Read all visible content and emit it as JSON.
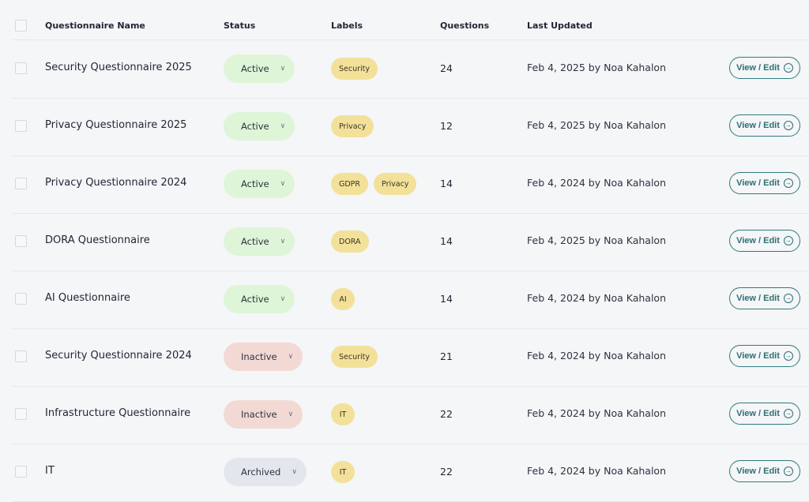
{
  "header": {
    "name": "Questionnaire Name",
    "status": "Status",
    "labels": "Labels",
    "questions": "Questions",
    "updated": "Last Updated"
  },
  "action_label": "View / Edit",
  "rows": [
    {
      "name": "Security Questionnaire 2025",
      "status": "Active",
      "labels": [
        "Security"
      ],
      "questions": "24",
      "updated": "Feb 4, 2025 by Noa Kahalon"
    },
    {
      "name": "Privacy Questionnaire 2025",
      "status": "Active",
      "labels": [
        "Privacy"
      ],
      "questions": "12",
      "updated": "Feb 4, 2025 by Noa Kahalon"
    },
    {
      "name": "Privacy Questionnaire 2024",
      "status": "Active",
      "labels": [
        "GDPR",
        "Privacy"
      ],
      "questions": "14",
      "updated": "Feb 4, 2024 by Noa Kahalon"
    },
    {
      "name": "DORA Questionnaire",
      "status": "Active",
      "labels": [
        "DORA"
      ],
      "questions": "14",
      "updated": "Feb 4, 2025 by Noa Kahalon"
    },
    {
      "name": "AI Questionnaire",
      "status": "Active",
      "labels": [
        "AI"
      ],
      "questions": "14",
      "updated": "Feb 4, 2024 by Noa Kahalon"
    },
    {
      "name": "Security Questionnaire 2024",
      "status": "Inactive",
      "labels": [
        "Security"
      ],
      "questions": "21",
      "updated": "Feb 4, 2024 by Noa Kahalon"
    },
    {
      "name": "Infrastructure Questionnaire",
      "status": "Inactive",
      "labels": [
        "IT"
      ],
      "questions": "22",
      "updated": "Feb 4, 2024 by Noa Kahalon"
    },
    {
      "name": "IT",
      "status": "Archived",
      "labels": [
        "IT"
      ],
      "questions": "22",
      "updated": "Feb 4, 2024 by Noa Kahalon"
    }
  ],
  "colors": {
    "active": "#dff5d7",
    "inactive": "#f3d9d4",
    "archived": "#e3e6ec",
    "label": "#f3e19a",
    "accent": "#2f6d72"
  }
}
